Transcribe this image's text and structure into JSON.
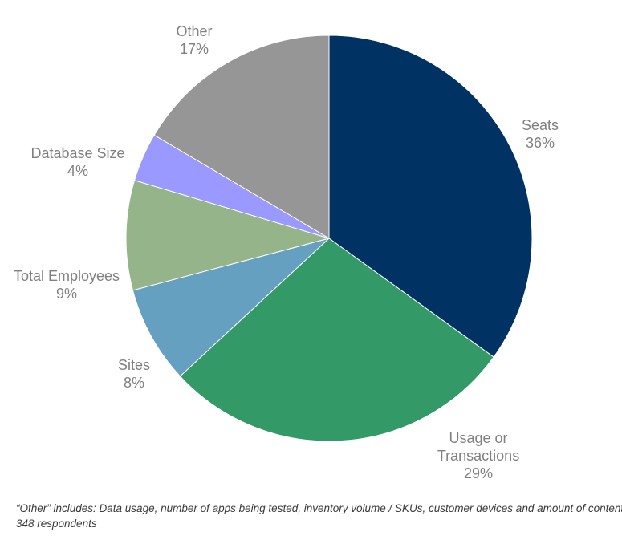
{
  "chart_data": {
    "type": "pie",
    "slices": [
      {
        "name": "Seats",
        "value": 36,
        "value_label": "36%",
        "color": "#003264"
      },
      {
        "name": "Usage or Transactions",
        "lines": [
          "Usage or",
          "Transactions"
        ],
        "value": 29,
        "value_label": "29%",
        "color": "#339966"
      },
      {
        "name": "Sites",
        "value": 8,
        "value_label": "8%",
        "color": "#66A0C0"
      },
      {
        "name": "Total Employees",
        "value": 9,
        "value_label": "9%",
        "color": "#96B48A"
      },
      {
        "name": "Database Size",
        "value": 4,
        "value_label": "4%",
        "color": "#9999FF"
      },
      {
        "name": "Other",
        "value": 17,
        "value_label": "17%",
        "color": "#969696"
      }
    ],
    "start": "top",
    "direction": "clockwise",
    "legend": "none",
    "data_labels": "outside"
  },
  "footnotes": {
    "other_note": "“Other” includes: Data usage, number of apps being tested, inventory volume / SKUs, customer devices and amount of content",
    "respondents": "348 respondents"
  }
}
